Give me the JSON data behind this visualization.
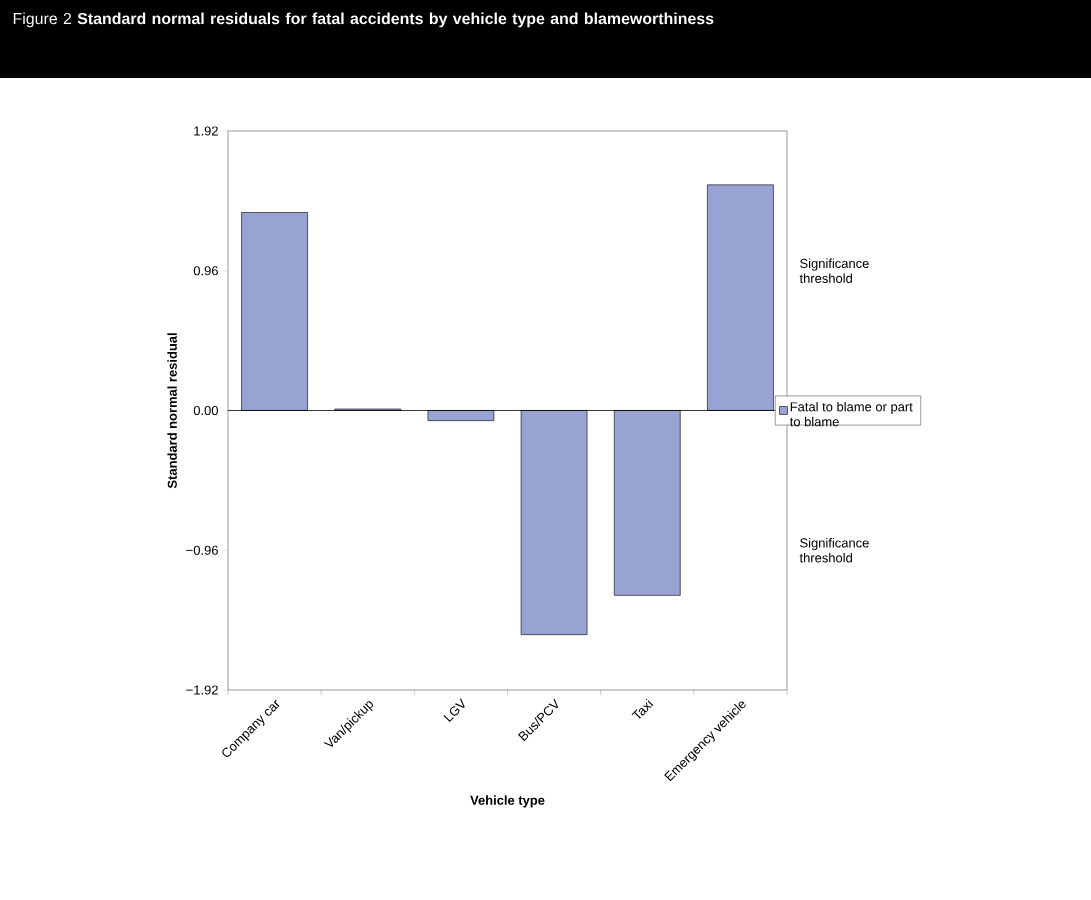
{
  "chart_data": {
    "type": "bar",
    "title": "Figure 2  **Standard normal residuals for fatal accidents by vehicle type and blameworthiness**",
    "xlabel": "Vehicle type",
    "ylabel": "Standard normal residual",
    "categories": [
      "Company car",
      "Van/pickup",
      "LGV",
      "Bus/PCV",
      "Taxi",
      "Emergency vehicle"
    ],
    "series": [
      {
        "name": "Fatal to blame or part to blame",
        "color": "#99a3d3",
        "values": [
          1.36,
          0.01,
          -0.07,
          -1.54,
          -1.27,
          1.55
        ]
      }
    ],
    "ylim": [
      -1.92,
      1.92
    ],
    "yticks": [
      {
        "value": -1.92,
        "label": "−1.92"
      },
      {
        "value": -0.96,
        "label": "−0.96"
      },
      {
        "value": 0,
        "label": "0.00"
      },
      {
        "value": 0.96,
        "label": "0.96"
      },
      {
        "value": 1.92,
        "label": "1.92"
      }
    ],
    "annotations": [
      "Significance threshold",
      "Significance threshold"
    ],
    "ref_lines": [
      {
        "axis": "y",
        "value": 0,
        "color": "#000000"
      }
    ],
    "legend": "right",
    "grid": false
  }
}
